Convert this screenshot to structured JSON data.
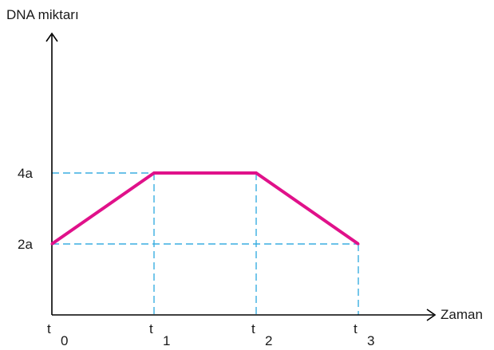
{
  "chart_data": {
    "type": "line",
    "ylabel": "DNA miktarı",
    "xlabel": "Zaman",
    "x_ticks": [
      {
        "base": "t",
        "sub": "0"
      },
      {
        "base": "t",
        "sub": "1"
      },
      {
        "base": "t",
        "sub": "2"
      },
      {
        "base": "t",
        "sub": "3"
      }
    ],
    "y_ticks": [
      "2a",
      "4a"
    ],
    "series": [
      {
        "x": [
          0,
          1,
          2,
          3
        ],
        "y": [
          2,
          4,
          4,
          2
        ]
      }
    ],
    "line_color": "#e0118a",
    "guide_color": "#3aaee0"
  }
}
